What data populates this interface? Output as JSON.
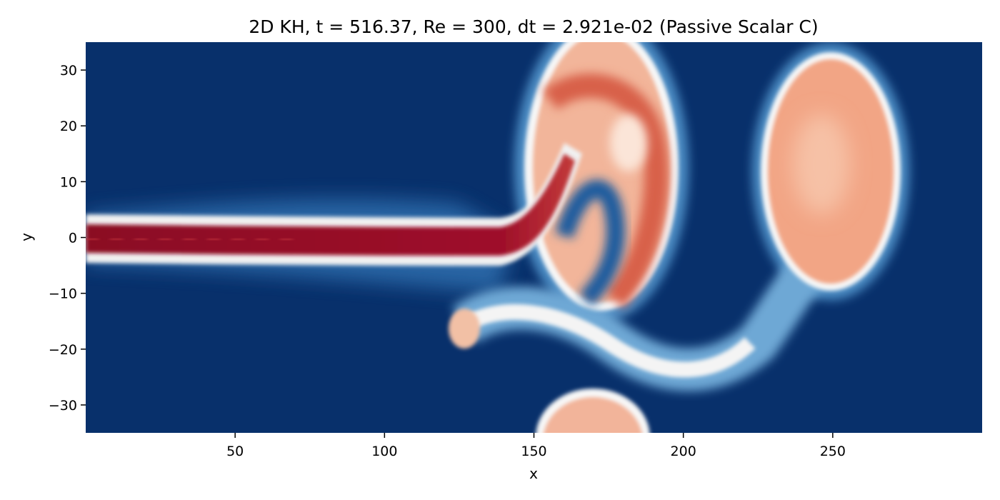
{
  "chart_data": {
    "type": "heatmap",
    "title": "2D KH, t =  516.37, Re = 300, dt = 2.921e-02 (Passive Scalar C)",
    "xlabel": "x",
    "ylabel": "y",
    "xlim": [
      0,
      300
    ],
    "ylim": [
      -35,
      35
    ],
    "x_ticks": [
      50,
      100,
      150,
      200,
      250
    ],
    "x_tick_labels": [
      "50",
      "100",
      "150",
      "200",
      "250"
    ],
    "y_ticks": [
      30,
      20,
      10,
      0,
      -10,
      -20,
      -30
    ],
    "y_tick_labels": [
      "30",
      "20",
      "10",
      "0",
      "−10",
      "−20",
      "−30"
    ],
    "colormap": "RdBu_r",
    "background_color": "#08306b",
    "grid": false,
    "legend": "none",
    "field_features": [
      {
        "name": "core jet",
        "x_start": 0,
        "x_end": 150,
        "y": 0,
        "half_width": 3.5
      },
      {
        "name": "rolled vortex (upper)",
        "cx": 183,
        "cy": 15,
        "rx": 18,
        "ry": 27
      },
      {
        "name": "trailing vortex",
        "cx": 248,
        "cy": 12,
        "rx": 22,
        "ry": 20
      },
      {
        "name": "lower filament",
        "x_start": 125,
        "x_end": 215,
        "y_from": -18,
        "y_to": -24
      },
      {
        "name": "bottom vortex",
        "cx": 168,
        "cy": -36,
        "rx": 18,
        "ry": 8
      }
    ]
  }
}
